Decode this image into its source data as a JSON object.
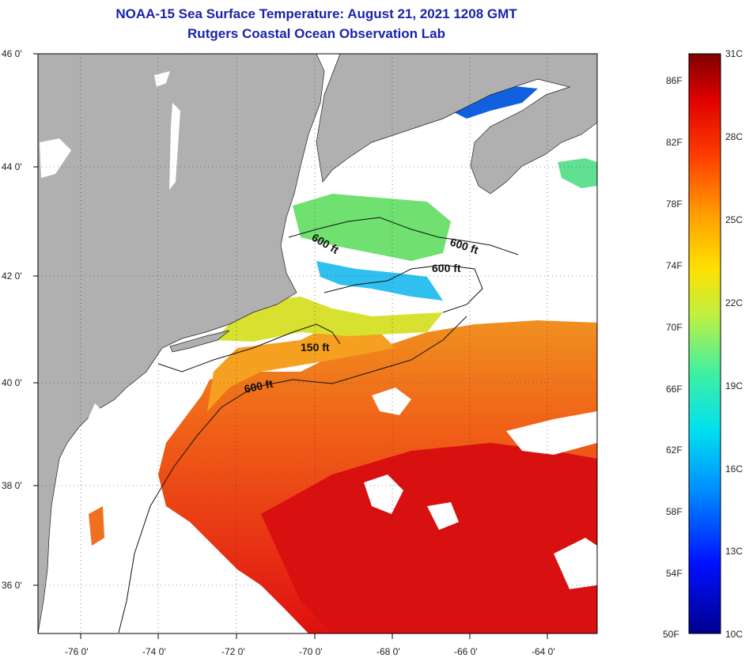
{
  "title": {
    "line1": "NOAA-15 Sea Surface Temperature:  August 21, 2021 1208 GMT",
    "line2": "Rutgers Coastal Ocean Observation Lab"
  },
  "axes": {
    "lat_labels": [
      "46 0'",
      "44 0'",
      "42 0'",
      "40 0'",
      "38 0'",
      "36 0'"
    ],
    "lon_labels": [
      "-76 0'",
      "-74 0'",
      "-72 0'",
      "-70 0'",
      "-68 0'",
      "-66 0'",
      "-64 0'"
    ]
  },
  "contours": {
    "labels": [
      "600 ft",
      "600 ft",
      "600 ft",
      "150 ft",
      "600 ft"
    ]
  },
  "colorbar": {
    "fahrenheit": [
      "86F",
      "82F",
      "78F",
      "74F",
      "70F",
      "66F",
      "62F",
      "58F",
      "54F",
      "50F"
    ],
    "celsius": [
      "31C",
      "28C",
      "25C",
      "22C",
      "19C",
      "16C",
      "13C",
      "10C"
    ]
  },
  "colors": {
    "land": "#b0b0b0",
    "title": "#1a23a8",
    "warm": "#e62010",
    "cold": "#1040d0"
  }
}
